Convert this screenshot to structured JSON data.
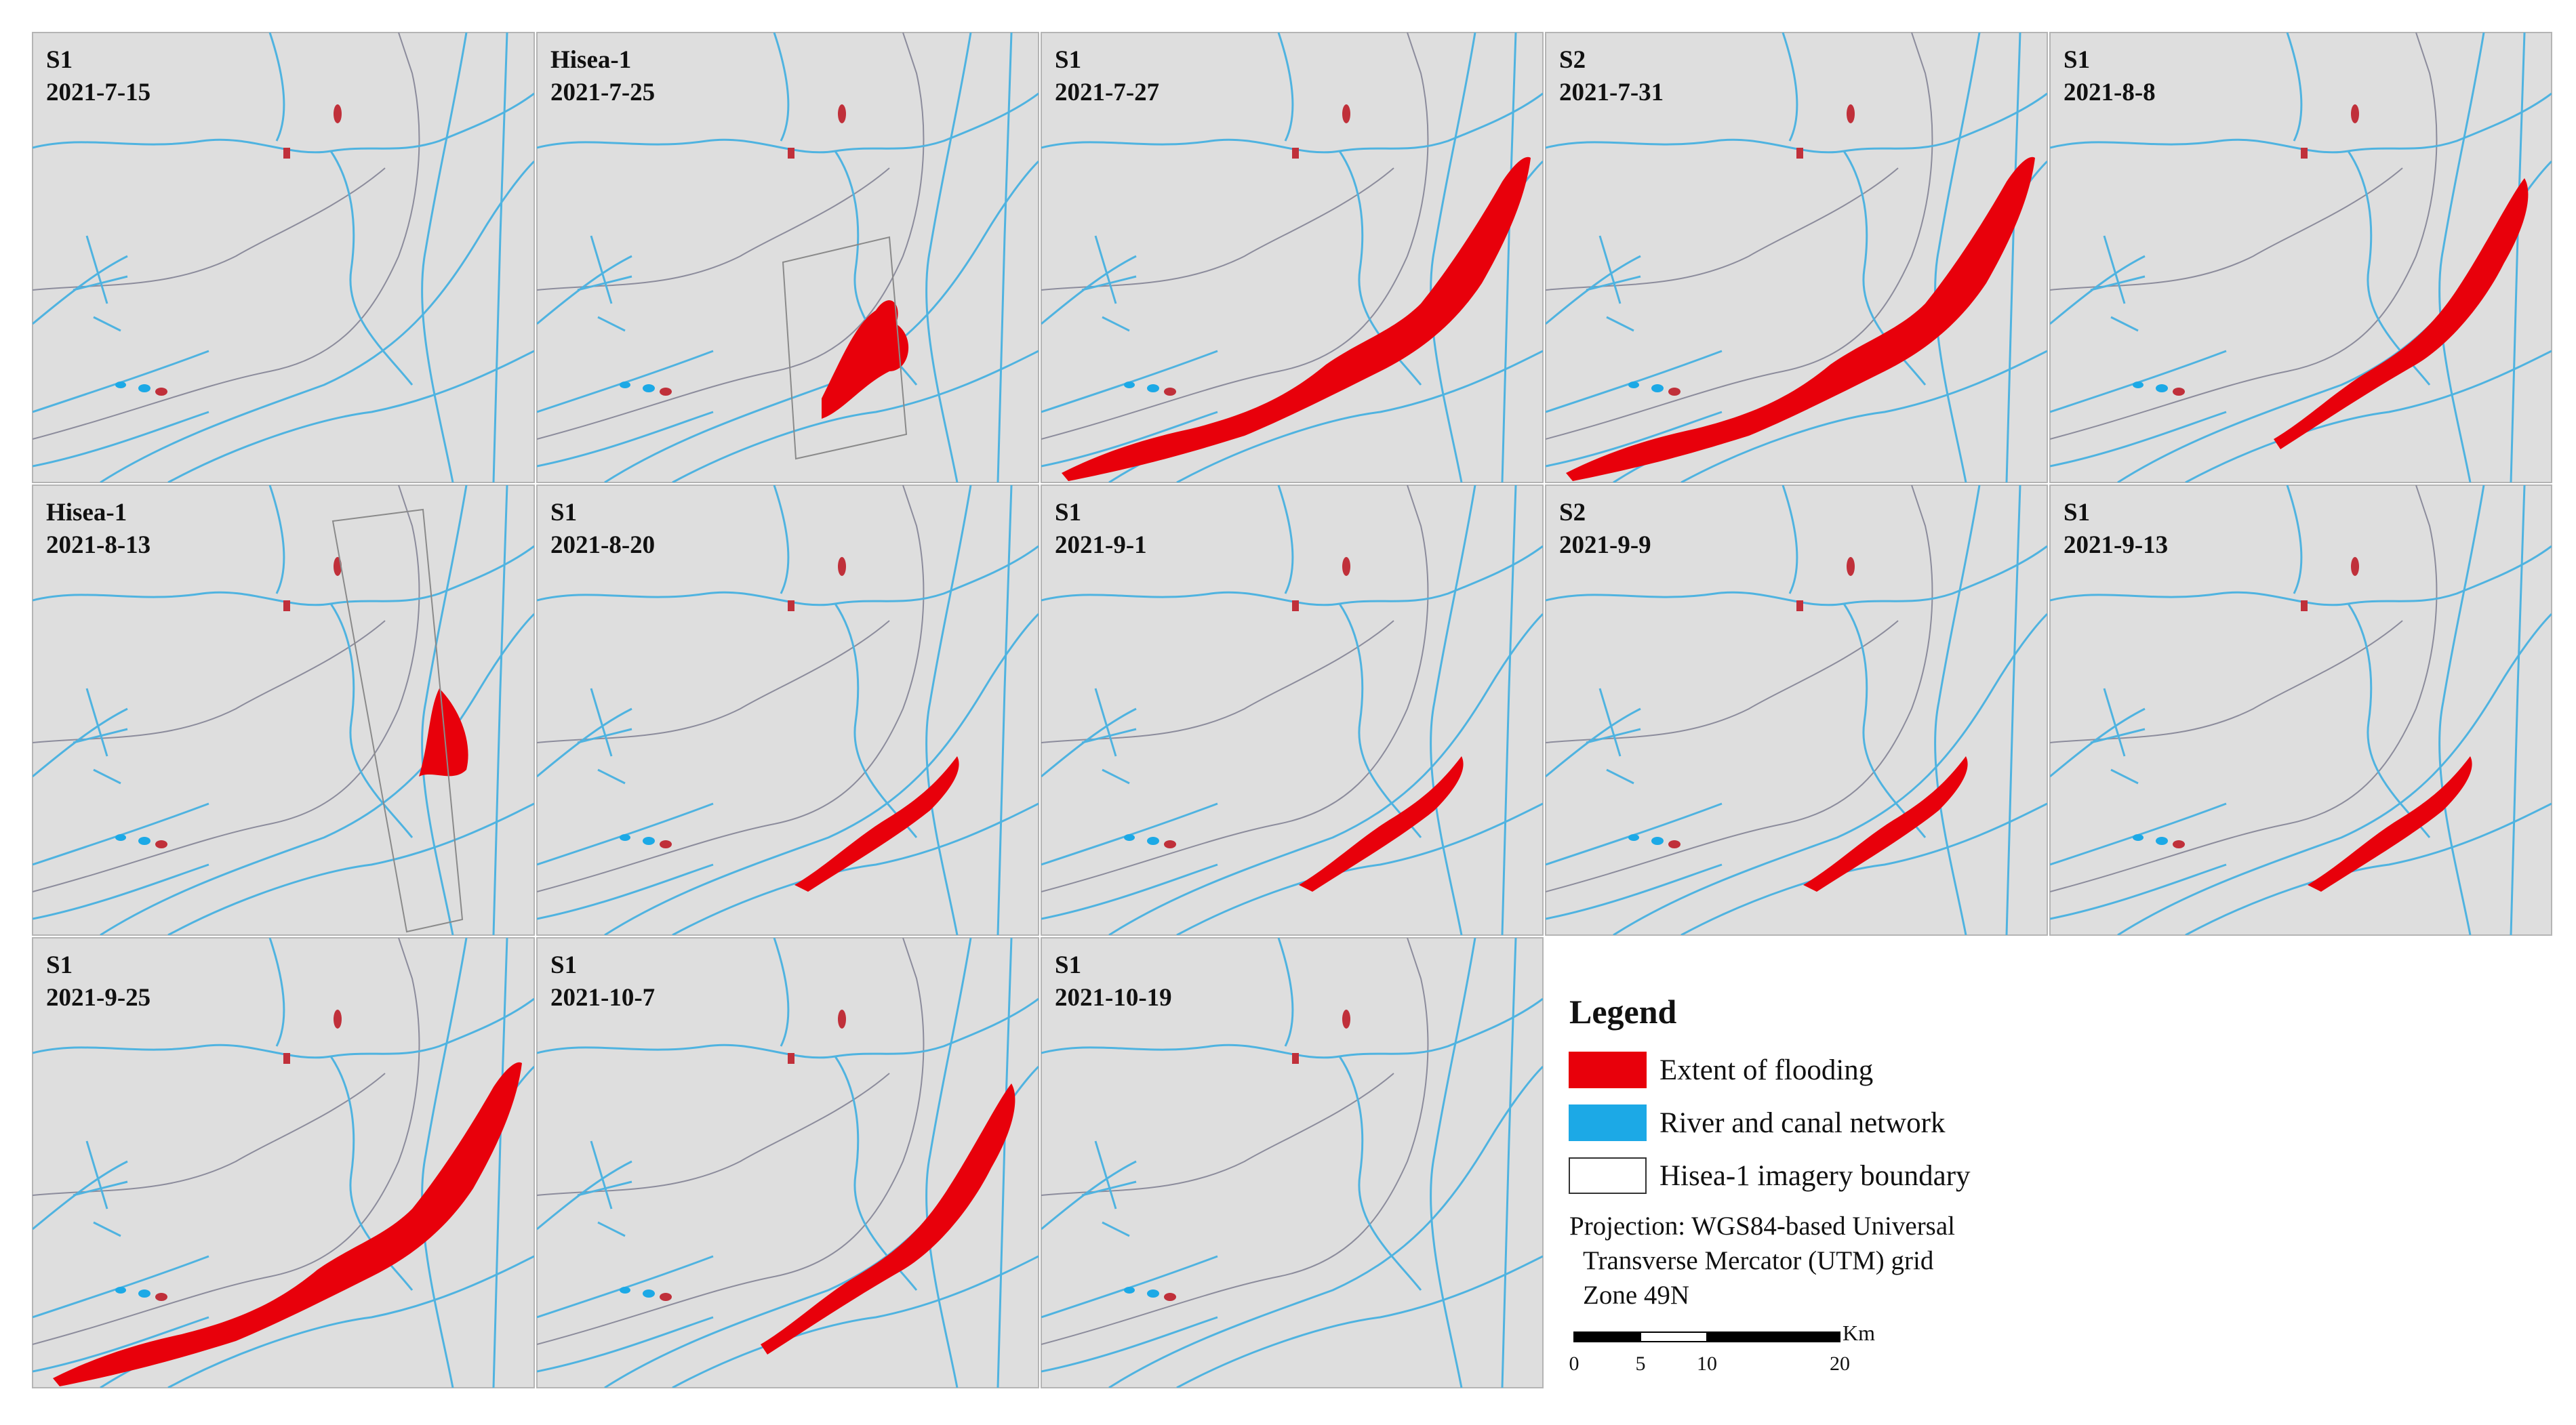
{
  "panels": [
    {
      "sensor": "S1",
      "date": "2021-7-15"
    },
    {
      "sensor": "Hisea-1",
      "date": "2021-7-25"
    },
    {
      "sensor": "S1",
      "date": "2021-7-27"
    },
    {
      "sensor": "S2",
      "date": "2021-7-31"
    },
    {
      "sensor": "S1",
      "date": "2021-8-8"
    },
    {
      "sensor": "Hisea-1",
      "date": "2021-8-13"
    },
    {
      "sensor": "S1",
      "date": "2021-8-20"
    },
    {
      "sensor": "S1",
      "date": "2021-9-1"
    },
    {
      "sensor": "S2",
      "date": "2021-9-9"
    },
    {
      "sensor": "S1",
      "date": "2021-9-13"
    },
    {
      "sensor": "S1",
      "date": "2021-9-25"
    },
    {
      "sensor": "S1",
      "date": "2021-10-7"
    },
    {
      "sensor": "S1",
      "date": "2021-10-19"
    }
  ],
  "legend": {
    "title": "Legend",
    "items": [
      {
        "label": "Extent of flooding",
        "color": "#e8000b"
      },
      {
        "label": "River and canal network",
        "color": "#1ca9e6"
      },
      {
        "label": "Hisea-1 imagery boundary",
        "color": "#ffffff"
      }
    ],
    "projection": [
      "Projection: WGS84-based Universal",
      "Transverse Mercator (UTM) grid",
      "Zone 49N"
    ]
  },
  "scale_bar": {
    "unit": "Km",
    "ticks": [
      0,
      5,
      10,
      20
    ]
  }
}
